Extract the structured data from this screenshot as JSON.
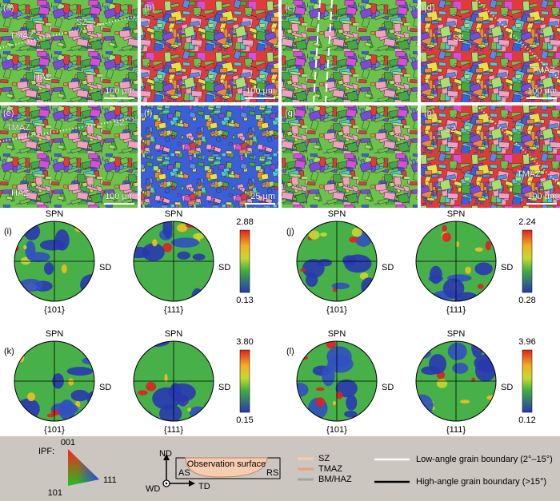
{
  "maps": [
    {
      "label": "(a)",
      "zones": [
        "SZ",
        "TMAZ",
        "HAZ"
      ],
      "scale_bar": "100 μm"
    },
    {
      "label": "(b)",
      "scale_bar": "100 μm"
    },
    {
      "label": "(c)"
    },
    {
      "label": "(d)",
      "zones": [
        "SZ",
        "TMAZ"
      ],
      "scale_bar": "100 μm"
    },
    {
      "label": "(e)",
      "zones": [
        "TMAZ",
        "SZ",
        "HAZ"
      ],
      "scale_bar": "100 μm"
    },
    {
      "label": "(f)",
      "scale_bar": "25 μm"
    },
    {
      "label": "(g)"
    },
    {
      "label": "(h)",
      "zones": [
        "SZ",
        "TMAZ"
      ],
      "scale_bar": "100 μm"
    }
  ],
  "pole_figures": [
    {
      "label": "(i)",
      "figures": [
        {
          "name": "{101}",
          "top": "SPN",
          "side": "SD"
        },
        {
          "name": "{111}",
          "top": "SPN",
          "side": "SD"
        }
      ],
      "colorbar": {
        "max": "2.88",
        "min": "0.13"
      }
    },
    {
      "label": "(j)",
      "figures": [
        {
          "name": "{101}",
          "top": "SPN",
          "side": "SD"
        },
        {
          "name": "{111}",
          "top": "SPN",
          "side": "SD"
        }
      ],
      "colorbar": {
        "max": "2.24",
        "min": "0.28"
      }
    },
    {
      "label": "(k)",
      "figures": [
        {
          "name": "{101}",
          "top": "SPN",
          "side": "SD"
        },
        {
          "name": "{111}",
          "top": "SPN",
          "side": "SD"
        }
      ],
      "colorbar": {
        "max": "3.80",
        "min": "0.15"
      }
    },
    {
      "label": "(l)",
      "figures": [
        {
          "name": "{101}",
          "top": "SPN",
          "side": "SD"
        },
        {
          "name": "{111}",
          "top": "SPN",
          "side": "SD"
        }
      ],
      "colorbar": {
        "max": "3.96",
        "min": "0.12"
      }
    }
  ],
  "legend": {
    "ipf": {
      "title": "IPF:",
      "corners": [
        "001",
        "111",
        "101"
      ]
    },
    "schematic": {
      "nd": "ND",
      "td": "TD",
      "wd": "WD",
      "as": "AS",
      "rs": "RS",
      "surface": "Observation surface"
    },
    "zones": [
      "SZ",
      "TMAZ",
      "BM/HAZ"
    ],
    "boundaries": [
      "Low-angle grain boundary (2°–15°)",
      "High-angle grain boundary (>15°)"
    ]
  }
}
